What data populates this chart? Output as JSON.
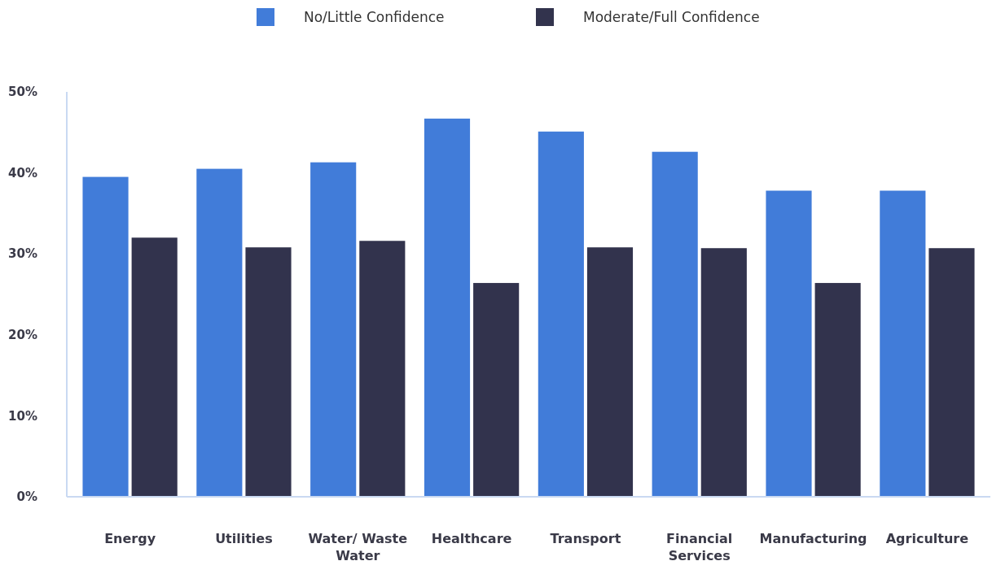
{
  "chart_data": {
    "type": "bar",
    "categories": [
      "Energy",
      "Utilities",
      "Water/ Waste Water",
      "Healthcare",
      "Transport",
      "Financial Services",
      "Manufacturing",
      "Agriculture"
    ],
    "series": [
      {
        "name": "No/Little Confidence",
        "color": "#417cd9",
        "values": [
          39.5,
          40.5,
          41.3,
          46.7,
          45.1,
          42.6,
          37.8,
          37.8
        ]
      },
      {
        "name": "Moderate/Full Confidence",
        "color": "#32334d",
        "values": [
          32.0,
          30.8,
          31.6,
          26.4,
          30.8,
          30.7,
          26.4,
          30.7
        ]
      }
    ],
    "ylim": [
      0,
      50
    ],
    "yticks": [
      {
        "value": 0,
        "label": "0%"
      },
      {
        "value": 10,
        "label": "10%"
      },
      {
        "value": 20,
        "label": "20%"
      },
      {
        "value": 30,
        "label": "30%"
      },
      {
        "value": 40,
        "label": "40%"
      },
      {
        "value": 50,
        "label": "50%"
      }
    ],
    "grid": false,
    "legend": "top"
  }
}
